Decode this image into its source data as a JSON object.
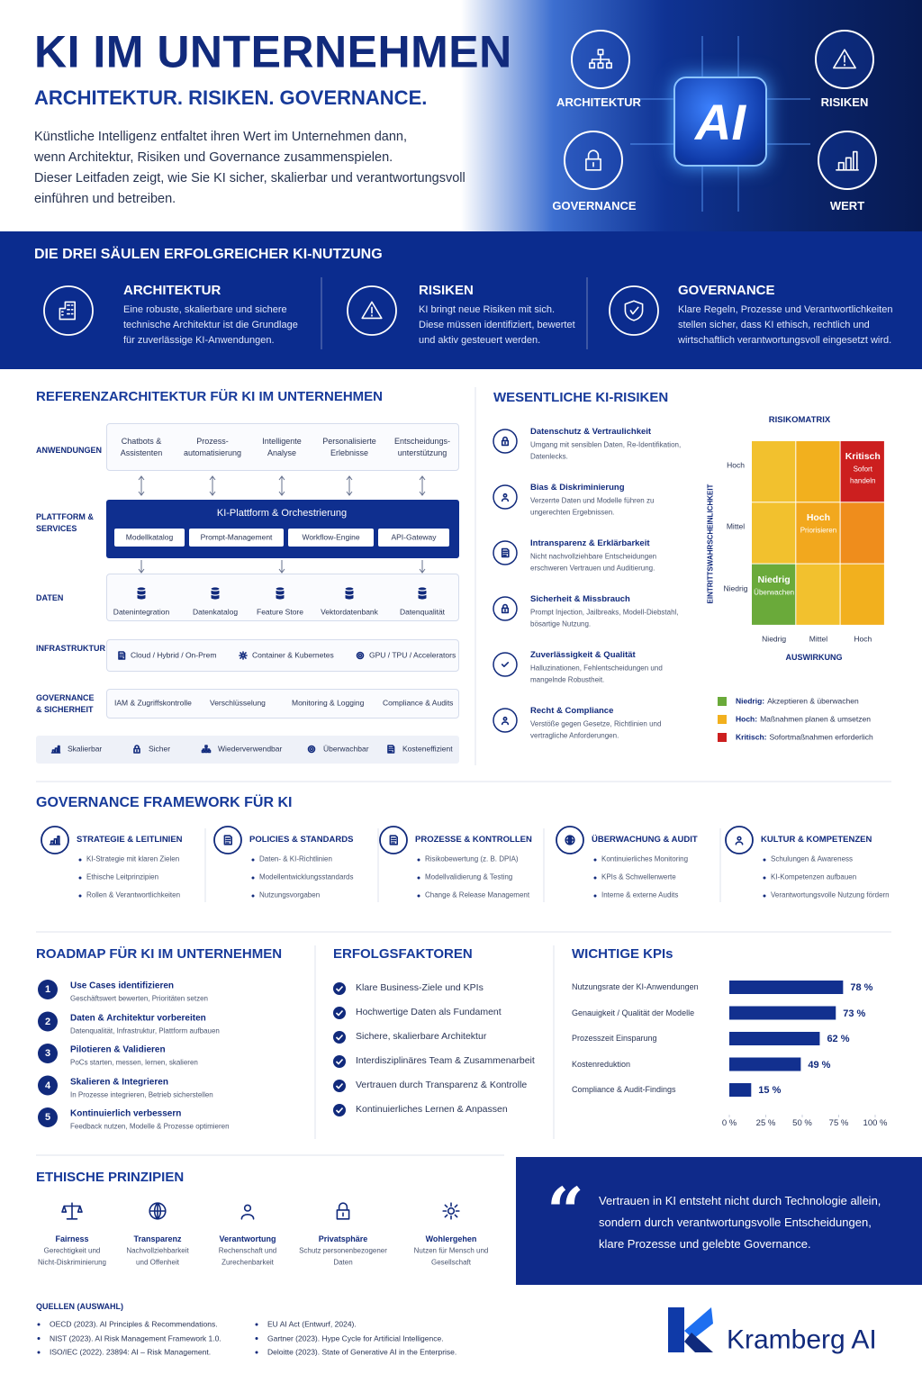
{
  "header": {
    "title": "KI IM UNTERNEHMEN",
    "subtitle": "ARCHITEKTUR. RISIKEN. GOVERNANCE.",
    "intro": [
      "Künstliche Intelligenz entfaltet ihren Wert im Unternehmen dann,",
      "wenn Architektur, Risiken und Governance zusammenspielen.",
      "Dieser Leitfaden zeigt, wie Sie KI sicher, skalierbar und verantwortungsvoll",
      "einführen und betreiben."
    ]
  },
  "hero": {
    "chip": "AI",
    "labels": [
      "ARCHITEKTUR",
      "RISIKEN",
      "GOVERNANCE",
      "WERT"
    ]
  },
  "pillars": {
    "title": "DIE DREI SÄULEN ERFOLGREICHER KI-NUTZUNG",
    "items": [
      {
        "title": "ARCHITEKTUR",
        "text": [
          "Eine robuste, skalierbare und sichere",
          "technische Architektur ist die Grundlage",
          "für zuverlässige KI-Anwendungen."
        ]
      },
      {
        "title": "RISIKEN",
        "text": [
          "KI bringt neue Risiken mit sich.",
          "Diese müssen identifiziert, bewertet",
          "und aktiv gesteuert werden."
        ]
      },
      {
        "title": "GOVERNANCE",
        "text": [
          "Klare Regeln, Prozesse und Verantwortlichkeiten",
          "stellen sicher, dass KI ethisch, rechtlich und",
          "wirtschaftlich verantwortungsvoll eingesetzt wird."
        ]
      }
    ]
  },
  "architecture": {
    "title": "REFERENZARCHITEKTUR FÜR KI IM UNTERNEHMEN",
    "applications": {
      "label": [
        "ANWENDUNGEN"
      ],
      "items": [
        [
          "Chatbots &",
          "Assistenten"
        ],
        [
          "Prozess-",
          "automatisierung"
        ],
        [
          "Intelligente",
          "Analyse"
        ],
        [
          "Personalisierte",
          "Erlebnisse"
        ],
        [
          "Entscheidungs-",
          "unterstützung"
        ]
      ]
    },
    "platform": {
      "label": [
        "PLATTFORM &",
        "SERVICES"
      ],
      "title": "KI-Plattform & Orchestrierung",
      "items": [
        "Modellkatalog",
        "Prompt-Management",
        "Workflow-Engine",
        "API-Gateway"
      ]
    },
    "data": {
      "label": [
        "DATEN"
      ],
      "items": [
        "Datenintegration",
        "Datenkatalog",
        "Feature Store",
        "Vektordatenbank",
        "Datenqualität"
      ]
    },
    "infrastructure": {
      "label": [
        "INFRASTRUKTUR"
      ],
      "items": [
        "Cloud / Hybrid / On-Prem",
        "Container & Kubernetes",
        "GPU / TPU / Accelerators"
      ]
    },
    "governance": {
      "label": [
        "GOVERNANCE",
        "& SICHERHEIT"
      ],
      "items": [
        "IAM & Zugriffskontrolle",
        "Verschlüsselung",
        "Monitoring & Logging",
        "Compliance & Audits"
      ]
    },
    "benefits": [
      "Skalierbar",
      "Sicher",
      "Wiederverwendbar",
      "Überwachbar",
      "Kosteneffizient"
    ]
  },
  "risks": {
    "title": "WESENTLICHE KI-RISIKEN",
    "items": [
      {
        "title": "Datenschutz & Vertraulichkeit",
        "text": [
          "Umgang mit sensiblen Daten, Re-Identifikation,",
          "Datenlecks."
        ]
      },
      {
        "title": "Bias & Diskriminierung",
        "text": [
          "Verzerrte Daten und Modelle führen zu",
          "ungerechten Ergebnissen."
        ]
      },
      {
        "title": "Intransparenz & Erklärbarkeit",
        "text": [
          "Nicht nachvollziehbare Entscheidungen",
          "erschweren Vertrauen und Auditierung."
        ]
      },
      {
        "title": "Sicherheit & Missbrauch",
        "text": [
          "Prompt Injection, Jailbreaks, Modell-Diebstahl,",
          "bösartige Nutzung."
        ]
      },
      {
        "title": "Zuverlässigkeit & Qualität",
        "text": [
          "Halluzinationen, Fehlentscheidungen und",
          "mangelnde Robustheit."
        ]
      },
      {
        "title": "Recht & Compliance",
        "text": [
          "Verstöße gegen Gesetze, Richtlinien und",
          "vertragliche Anforderungen."
        ]
      }
    ],
    "matrix": {
      "title": "RISIKOMATRIX",
      "y_label": "EINTRITTSWAHRSCHEINLICHKEIT",
      "x_label": "AUSWIRKUNG",
      "y_levels": [
        "Hoch",
        "Mittel",
        "Niedrig"
      ],
      "x_levels": [
        "Niedrig",
        "Mittel",
        "Hoch"
      ],
      "cells": [
        {
          "title": "Kritisch",
          "text": [
            "Sofort",
            "handeln"
          ]
        },
        {
          "title": "Hoch",
          "text": [
            "Priorisieren"
          ]
        },
        {
          "title": "Niedrig",
          "text": [
            "Überwachen"
          ]
        }
      ],
      "legend": [
        {
          "term": "Niedrig:",
          "text": "Akzeptieren & überwachen"
        },
        {
          "term": "Hoch:",
          "text": "Maßnahmen planen & umsetzen"
        },
        {
          "term": "Kritisch:",
          "text": "Sofortmaßnahmen erforderlich"
        }
      ]
    }
  },
  "governance": {
    "title": "GOVERNANCE FRAMEWORK FÜR KI",
    "columns": [
      {
        "title": "STRATEGIE & LEITLINIEN",
        "bullets": [
          "KI-Strategie mit klaren Zielen",
          "Ethische Leitprinzipien",
          "Rollen & Verantwortlichkeiten"
        ]
      },
      {
        "title": "POLICIES & STANDARDS",
        "bullets": [
          "Daten- & KI-Richtlinien",
          "Modellentwicklungsstandards",
          "Nutzungsvorgaben"
        ]
      },
      {
        "title": "PROZESSE & KONTROLLEN",
        "bullets": [
          "Risikobewertung (z. B. DPIA)",
          "Modellvalidierung & Testing",
          "Change & Release Management"
        ]
      },
      {
        "title": "ÜBERWACHUNG & AUDIT",
        "bullets": [
          "Kontinuierliches Monitoring",
          "KPIs & Schwellenwerte",
          "Interne & externe Audits"
        ]
      },
      {
        "title": "KULTUR & KOMPETENZEN",
        "bullets": [
          "Schulungen & Awareness",
          "KI-Kompetenzen aufbauen",
          "Verantwortungsvolle Nutzung fördern"
        ]
      }
    ]
  },
  "roadmap": {
    "title": "ROADMAP FÜR KI IM UNTERNEHMEN",
    "steps": [
      {
        "number": "1",
        "title": "Use Cases identifizieren",
        "text": "Geschäftswert bewerten, Prioritäten setzen"
      },
      {
        "number": "2",
        "title": "Daten & Architektur vorbereiten",
        "text": "Datenqualität, Infrastruktur, Plattform aufbauen"
      },
      {
        "number": "3",
        "title": "Pilotieren & Validieren",
        "text": "PoCs starten, messen, lernen, skalieren"
      },
      {
        "number": "4",
        "title": "Skalieren & Integrieren",
        "text": "In Prozesse integrieren, Betrieb sicherstellen"
      },
      {
        "number": "5",
        "title": "Kontinuierlich verbessern",
        "text": "Feedback nutzen, Modelle & Prozesse optimieren"
      }
    ]
  },
  "success_factors": {
    "title": "ERFOLGSFAKTOREN",
    "items": [
      "Klare Business-Ziele und KPIs",
      "Hochwertige Daten als Fundament",
      "Sichere, skalierbare Architektur",
      "Interdisziplinäres Team & Zusammenarbeit",
      "Vertrauen durch Transparenz & Kontrolle",
      "Kontinuierliches Lernen & Anpassen"
    ]
  },
  "chart_data": {
    "type": "hbar",
    "title": "WICHTIGE KPIs",
    "categories": [
      "Nutzungsrate der KI-Anwendungen",
      "Genauigkeit / Qualität der Modelle",
      "Prozesszeit Einsparung",
      "Kostenreduktion",
      "Compliance & Audit-Findings"
    ],
    "values": [
      78,
      73,
      62,
      49,
      15
    ],
    "value_labels": [
      "78 %",
      "73 %",
      "62 %",
      "49 %",
      "15 %"
    ],
    "color": "#12308f",
    "xlim": [
      0,
      100
    ],
    "xticks": [
      {
        "value": 0,
        "label": "0 %"
      },
      {
        "value": 25,
        "label": "25 %"
      },
      {
        "value": 50,
        "label": "50 %"
      },
      {
        "value": 75,
        "label": "75 %"
      },
      {
        "value": 100,
        "label": "100 %"
      }
    ]
  },
  "ethics": {
    "title": "ETHISCHE PRINZIPIEN",
    "items": [
      {
        "title": "Fairness",
        "text": [
          "Gerechtigkeit und",
          "Nicht-Diskriminierung"
        ]
      },
      {
        "title": "Transparenz",
        "text": [
          "Nachvollziehbarkeit",
          "und Offenheit"
        ]
      },
      {
        "title": "Verantwortung",
        "text": [
          "Rechenschaft und",
          "Zurechenbarkeit"
        ]
      },
      {
        "title": "Privatsphäre",
        "text": [
          "Schutz personenbezogener",
          "Daten"
        ]
      },
      {
        "title": "Wohlergehen",
        "text": [
          "Nutzen für Mensch und",
          "Gesellschaft"
        ]
      }
    ]
  },
  "quote": {
    "mark": "“",
    "lines": [
      "Vertrauen in KI entsteht nicht durch Technologie allein,",
      "sondern durch verantwortungsvolle Entscheidungen,",
      "klare Prozesse und gelebte Governance."
    ]
  },
  "sources": {
    "title": "QUELLEN (AUSWAHL)",
    "items": [
      "OECD (2023). AI Principles & Recommendations.",
      "NIST (2023). AI Risk Management Framework 1.0.",
      "ISO/IEC (2022). 23894: AI – Risk Management.",
      "EU AI Act (Entwurf, 2024).",
      "Gartner (2023). Hype Cycle for Artificial Intelligence.",
      "Deloitte (2023). State of Generative AI in the Enterprise."
    ]
  },
  "logo": {
    "name": "Kramberg AI"
  }
}
